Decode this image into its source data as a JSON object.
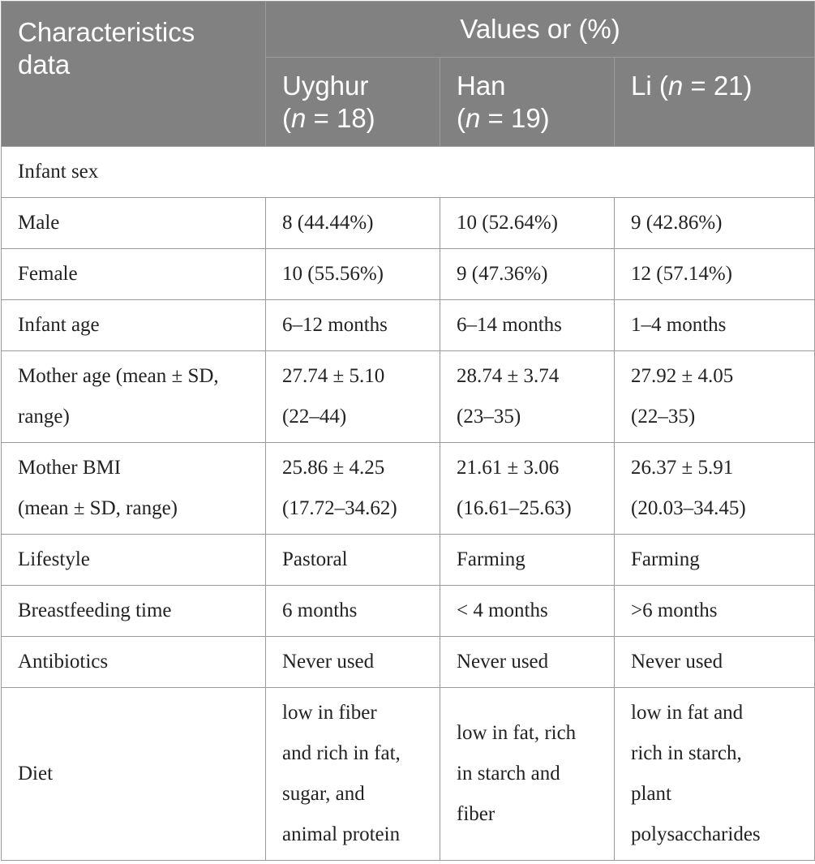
{
  "header": {
    "characteristics": "Characteristics data",
    "values": "Values or (%)",
    "groups": [
      {
        "name": "Uyghur",
        "n_pre": "(",
        "n_var": "n",
        "n_post": " = 18)"
      },
      {
        "name": "Han",
        "n_pre": "(",
        "n_var": "n",
        "n_post": " = 19)"
      },
      {
        "name": "Li",
        "n_pre": " (",
        "n_var": "n",
        "n_post": " = 21)"
      }
    ]
  },
  "rows": {
    "infant_sex": {
      "label": "Infant sex"
    },
    "male": {
      "label": "Male",
      "uyghur": "8 (44.44%)",
      "han": "10 (52.64%)",
      "li": "9 (42.86%)"
    },
    "female": {
      "label": "Female",
      "uyghur": "10 (55.56%)",
      "han": "9 (47.36%)",
      "li": "12 (57.14%)"
    },
    "infant_age": {
      "label": "Infant age",
      "uyghur": "6–12 months",
      "han": "6–14 months",
      "li": "1–4 months"
    },
    "mother_age": {
      "label_1": "Mother age (mean ± SD,",
      "label_2": "range)",
      "uyghur_1": "27.74 ± 5.10",
      "uyghur_2": "(22–44)",
      "han_1": "28.74 ± 3.74",
      "han_2": "(23–35)",
      "li_1": "27.92 ± 4.05",
      "li_2": "(22–35)"
    },
    "mother_bmi": {
      "label_1": "Mother BMI",
      "label_2": "(mean ± SD, range)",
      "uyghur_1": "25.86 ± 4.25",
      "uyghur_2": "(17.72–34.62)",
      "han_1": "21.61 ± 3.06",
      "han_2": "(16.61–25.63)",
      "li_1": "26.37 ± 5.91",
      "li_2": "(20.03–34.45)"
    },
    "lifestyle": {
      "label": "Lifestyle",
      "uyghur": "Pastoral",
      "han": "Farming",
      "li": "Farming"
    },
    "breastfeeding": {
      "label": "Breastfeeding time",
      "uyghur": "6 months",
      "han": "< 4 months",
      "li": ">6 months"
    },
    "antibiotics": {
      "label": "Antibiotics",
      "uyghur": "Never used",
      "han": "Never used",
      "li": "Never used"
    },
    "diet": {
      "label": "Diet",
      "uyghur": [
        "low in fiber",
        "and rich in fat,",
        "sugar, and",
        "animal protein"
      ],
      "han": [
        "low in fat, rich",
        "in starch and",
        "fiber"
      ],
      "li": [
        "low in fat and",
        "rich in starch,",
        "plant",
        "polysaccharides"
      ]
    }
  }
}
